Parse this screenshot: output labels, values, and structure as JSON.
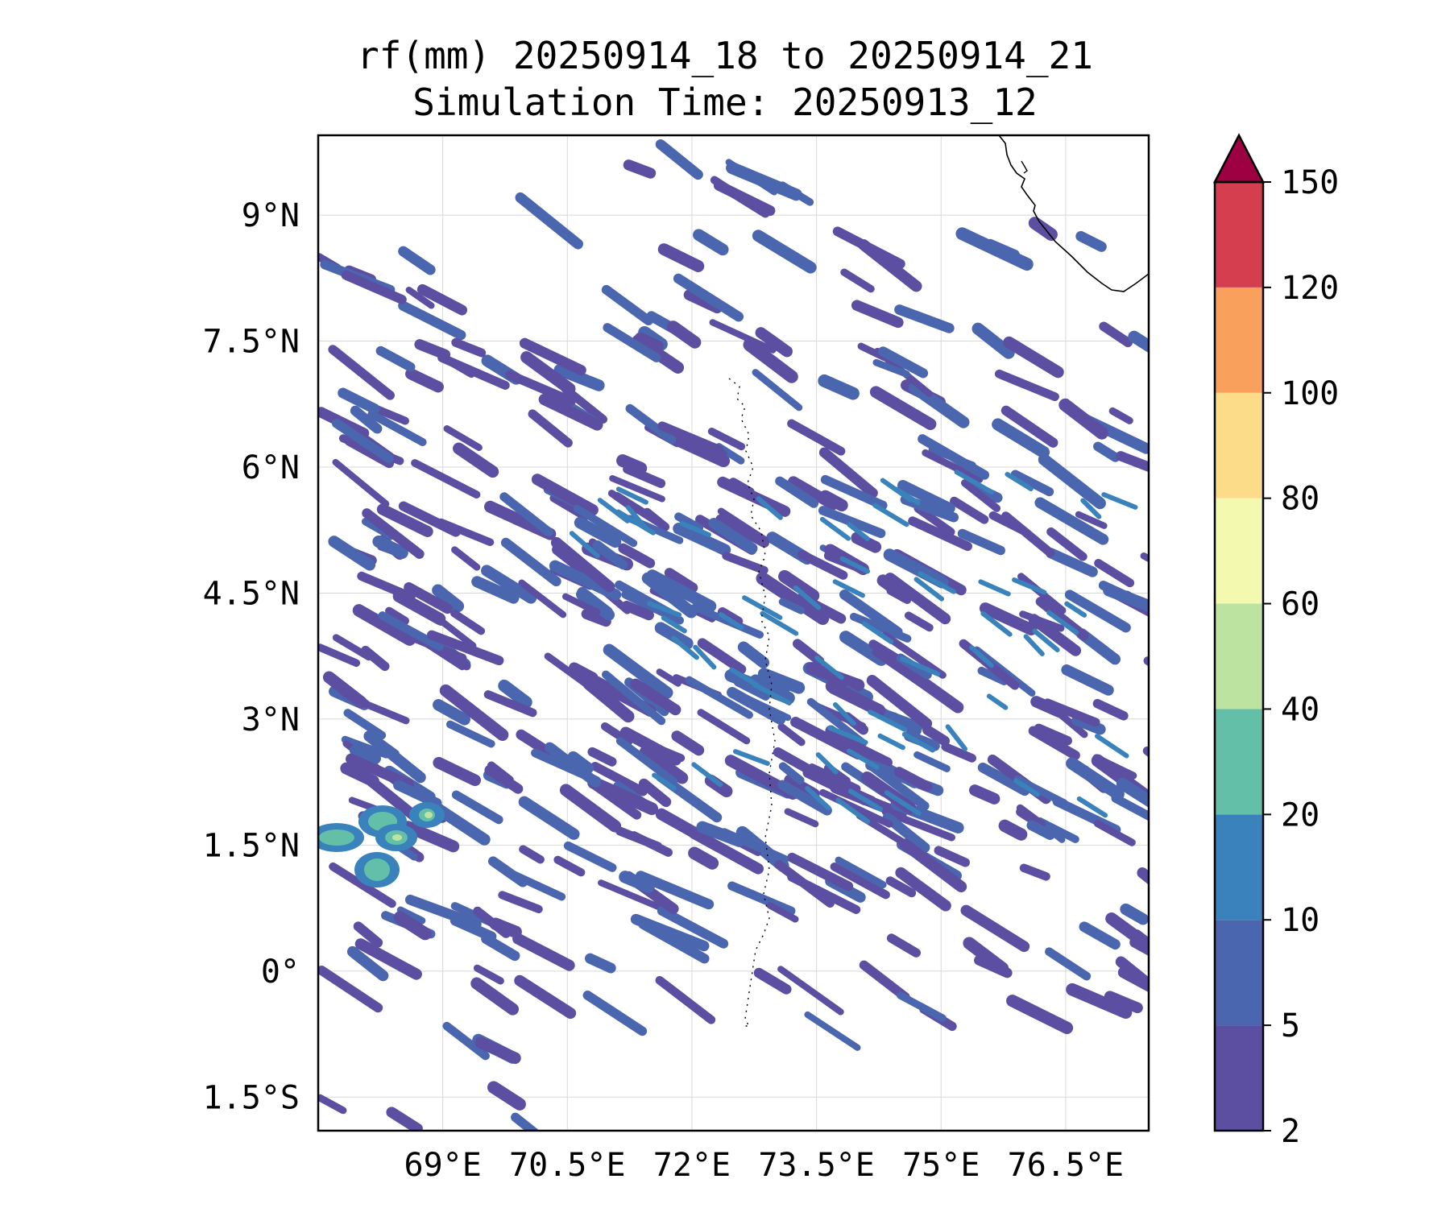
{
  "title": {
    "line1": "rf(mm) 20250914_18 to 20250914_21",
    "line2": "Simulation Time: 20250913_12"
  },
  "map": {
    "lon_range": [
      67.5,
      77.5
    ],
    "lat_range": [
      -1.9,
      9.95
    ],
    "x_ticks": [
      {
        "value": 69.0,
        "label": "69°E"
      },
      {
        "value": 70.5,
        "label": "70.5°E"
      },
      {
        "value": 72.0,
        "label": "72°E"
      },
      {
        "value": 73.5,
        "label": "73.5°E"
      },
      {
        "value": 75.0,
        "label": "75°E"
      },
      {
        "value": 76.5,
        "label": "76.5°E"
      }
    ],
    "y_ticks": [
      {
        "value": 9.0,
        "label": "9°N"
      },
      {
        "value": 7.5,
        "label": "7.5°N"
      },
      {
        "value": 6.0,
        "label": "6°N"
      },
      {
        "value": 4.5,
        "label": "4.5°N"
      },
      {
        "value": 3.0,
        "label": "3°N"
      },
      {
        "value": 1.5,
        "label": "1.5°N"
      },
      {
        "value": 0.0,
        "label": "0°"
      },
      {
        "value": -1.5,
        "label": "1.5°S"
      }
    ],
    "grid": true
  },
  "colorbar": {
    "levels": [
      2,
      5,
      10,
      20,
      40,
      60,
      80,
      100,
      120,
      150
    ],
    "labels": [
      "2",
      "5",
      "10",
      "20",
      "40",
      "60",
      "80",
      "100",
      "120",
      "150"
    ],
    "colors": [
      "#5c4fa2",
      "#4a66ae",
      "#3a82bb",
      "#64bfa9",
      "#bde3a1",
      "#f3f9ae",
      "#fcdc89",
      "#f9a05d",
      "#d53e4f"
    ],
    "extend_color": "#9e0142"
  }
}
